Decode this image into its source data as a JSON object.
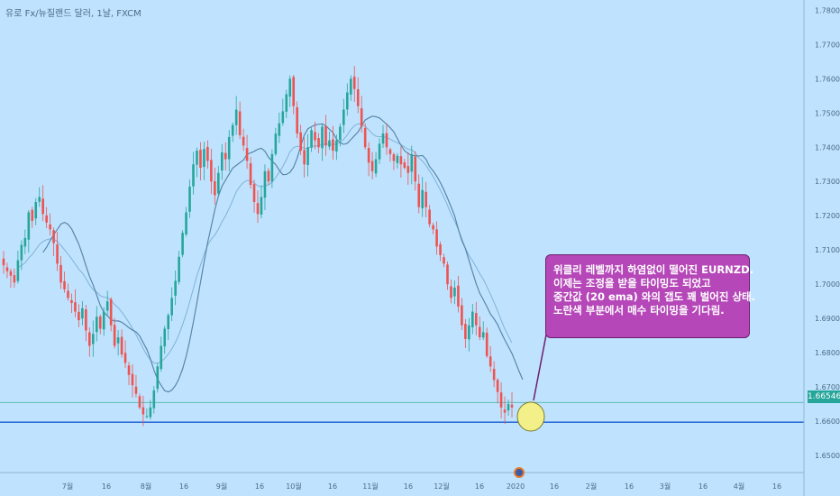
{
  "title": "유로 Fx/뉴질랜드 달러, 1날, FXCM",
  "callout": {
    "lines": [
      "위클리 레벨까지 하염없이 떨어진 EURNZD.",
      "이제는 조정을 받을 타이밍도 되었고",
      "중간값 (20 ema) 와의 갭도 꽤 벌어진 상태.",
      "노란색 부분에서 매수 타이밍을 기다림."
    ]
  },
  "current_price": "1.66546",
  "colors": {
    "background": "#bfe3ff",
    "up": "#26a69a",
    "down": "#ef5350",
    "ema20": "#7fb2d6",
    "ma50": "#5a86a8",
    "support_line": "#2f6fd6",
    "price_line": "#4fb6a8",
    "callout": "#b547b8",
    "highlight_circle": "#f3f08a"
  },
  "chart_data": {
    "type": "candlestick",
    "y_axis": {
      "min": 1.645,
      "max": 1.783,
      "ticks": [
        "1.65000",
        "1.66000",
        "1.67000",
        "1.68000",
        "1.69000",
        "1.70000",
        "1.71000",
        "1.72000",
        "1.73000",
        "1.74000",
        "1.75000",
        "1.76000",
        "1.77000",
        "1.78000"
      ]
    },
    "x_axis_labels": [
      "7월",
      "16",
      "8월",
      "16",
      "9월",
      "16",
      "10월",
      "16",
      "11월",
      "16",
      "12월",
      "16",
      "2020",
      "16",
      "2월",
      "16",
      "3월",
      "16",
      "4월",
      "16"
    ],
    "support_level": 1.6597,
    "last_price": 1.66546,
    "close_series": [
      1.7055,
      1.7038,
      1.7025,
      1.7005,
      1.707,
      1.7115,
      1.7135,
      1.721,
      1.7185,
      1.724,
      1.7255,
      1.7205,
      1.718,
      1.716,
      1.712,
      1.706,
      1.7005,
      1.6985,
      1.696,
      1.6945,
      1.692,
      1.6895,
      1.693,
      1.6865,
      1.682,
      1.6855,
      1.6905,
      1.687,
      1.692,
      1.695,
      1.688,
      1.682,
      1.6845,
      1.6795,
      1.677,
      1.6735,
      1.6705,
      1.668,
      1.664,
      1.662,
      1.6615,
      1.664,
      1.669,
      1.676,
      1.682,
      1.687,
      1.691,
      1.696,
      1.701,
      1.708,
      1.715,
      1.721,
      1.7285,
      1.735,
      1.739,
      1.734,
      1.7395,
      1.736,
      1.73,
      1.726,
      1.7325,
      1.7385,
      1.7365,
      1.743,
      1.7465,
      1.751,
      1.7435,
      1.7405,
      1.736,
      1.729,
      1.724,
      1.7205,
      1.7255,
      1.733,
      1.73,
      1.738,
      1.744,
      1.747,
      1.7505,
      1.7555,
      1.76,
      1.752,
      1.744,
      1.739,
      1.735,
      1.74,
      1.745,
      1.742,
      1.74,
      1.746,
      1.7405,
      1.742,
      1.739,
      1.742,
      1.746,
      1.751,
      1.756,
      1.76,
      1.757,
      1.752,
      1.746,
      1.74,
      1.7355,
      1.733,
      1.7365,
      1.741,
      1.744,
      1.74,
      1.738,
      1.736,
      1.7375,
      1.735,
      1.734,
      1.7325,
      1.738,
      1.73,
      1.7225,
      1.7275,
      1.7225,
      1.7175,
      1.716,
      1.711,
      1.7085,
      1.706,
      1.7,
      1.696,
      1.699,
      1.6935,
      1.688,
      1.684,
      1.688,
      1.692,
      1.688,
      1.6845,
      1.686,
      1.679,
      1.676,
      1.672,
      1.6685,
      1.664,
      1.6625,
      1.665,
      1.664
    ]
  }
}
